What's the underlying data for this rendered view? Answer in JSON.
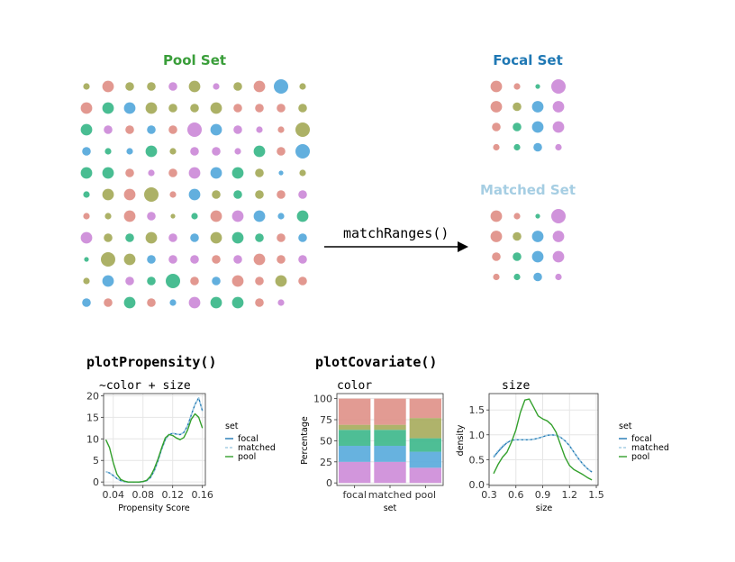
{
  "colors": {
    "red": "#E0928A",
    "olive": "#A8AD5E",
    "green": "#3FB98C",
    "blue": "#5AABDC",
    "purple": "#CE8DD9",
    "pool_title": "#3A9E3A",
    "focal_title": "#1F78B4",
    "matched_title": "#A6CEE3",
    "line_focal": "#1F78B4",
    "line_matched": "#A6CEE3",
    "line_pool": "#33A02C"
  },
  "diagram": {
    "pool_title": "Pool Set",
    "focal_title": "Focal Set",
    "matched_title": "Matched Set",
    "arrow_label": "matchRanges()",
    "pool_dots": [
      [
        "olive",
        2
      ],
      [
        "red",
        4
      ],
      [
        "olive",
        3
      ],
      [
        "olive",
        3
      ],
      [
        "purple",
        3
      ],
      [
        "olive",
        4
      ],
      [
        "purple",
        2
      ],
      [
        "olive",
        3
      ],
      [
        "red",
        4
      ],
      [
        "blue",
        5
      ],
      [
        "olive",
        2
      ],
      [
        "red",
        4
      ],
      [
        "green",
        4
      ],
      [
        "blue",
        4
      ],
      [
        "olive",
        4
      ],
      [
        "olive",
        3
      ],
      [
        "olive",
        3
      ],
      [
        "olive",
        4
      ],
      [
        "red",
        3
      ],
      [
        "red",
        3
      ],
      [
        "red",
        3
      ],
      [
        "olive",
        3
      ],
      [
        "green",
        4
      ],
      [
        "purple",
        3
      ],
      [
        "red",
        3
      ],
      [
        "blue",
        3
      ],
      [
        "red",
        3
      ],
      [
        "purple",
        5
      ],
      [
        "blue",
        4
      ],
      [
        "purple",
        3
      ],
      [
        "purple",
        2
      ],
      [
        "red",
        2
      ],
      [
        "olive",
        5
      ],
      [
        "blue",
        3
      ],
      [
        "green",
        2
      ],
      [
        "blue",
        2
      ],
      [
        "green",
        4
      ],
      [
        "olive",
        2
      ],
      [
        "purple",
        3
      ],
      [
        "purple",
        3
      ],
      [
        "purple",
        2
      ],
      [
        "green",
        4
      ],
      [
        "red",
        3
      ],
      [
        "blue",
        5
      ],
      [
        "green",
        4
      ],
      [
        "green",
        4
      ],
      [
        "red",
        3
      ],
      [
        "purple",
        2
      ],
      [
        "red",
        3
      ],
      [
        "purple",
        4
      ],
      [
        "blue",
        4
      ],
      [
        "green",
        4
      ],
      [
        "olive",
        3
      ],
      [
        "blue",
        1
      ],
      [
        "olive",
        2
      ],
      [
        "green",
        2
      ],
      [
        "olive",
        4
      ],
      [
        "red",
        4
      ],
      [
        "olive",
        5
      ],
      [
        "red",
        2
      ],
      [
        "blue",
        4
      ],
      [
        "olive",
        3
      ],
      [
        "green",
        3
      ],
      [
        "olive",
        3
      ],
      [
        "red",
        3
      ],
      [
        "purple",
        3
      ],
      [
        "red",
        2
      ],
      [
        "olive",
        2
      ],
      [
        "red",
        4
      ],
      [
        "purple",
        3
      ],
      [
        "olive",
        1
      ],
      [
        "green",
        2
      ],
      [
        "red",
        4
      ],
      [
        "purple",
        4
      ],
      [
        "blue",
        4
      ],
      [
        "blue",
        2
      ],
      [
        "green",
        4
      ],
      [
        "purple",
        4
      ],
      [
        "olive",
        3
      ],
      [
        "green",
        3
      ],
      [
        "olive",
        4
      ],
      [
        "purple",
        3
      ],
      [
        "blue",
        3
      ],
      [
        "olive",
        4
      ],
      [
        "green",
        4
      ],
      [
        "green",
        3
      ],
      [
        "red",
        3
      ],
      [
        "blue",
        3
      ],
      [
        "green",
        1
      ],
      [
        "olive",
        5
      ],
      [
        "olive",
        4
      ],
      [
        "blue",
        3
      ],
      [
        "purple",
        3
      ],
      [
        "purple",
        3
      ],
      [
        "red",
        3
      ],
      [
        "purple",
        3
      ],
      [
        "red",
        4
      ],
      [
        "red",
        3
      ],
      [
        "purple",
        3
      ],
      [
        "olive",
        2
      ],
      [
        "blue",
        4
      ],
      [
        "purple",
        3
      ],
      [
        "green",
        3
      ],
      [
        "green",
        5
      ],
      [
        "red",
        3
      ],
      [
        "blue",
        3
      ],
      [
        "red",
        4
      ],
      [
        "red",
        3
      ],
      [
        "olive",
        4
      ],
      [
        "red",
        3
      ],
      [
        "blue",
        3
      ],
      [
        "red",
        3
      ],
      [
        "green",
        4
      ],
      [
        "red",
        3
      ],
      [
        "blue",
        2
      ],
      [
        "purple",
        4
      ],
      [
        "green",
        4
      ],
      [
        "green",
        4
      ],
      [
        "red",
        3
      ],
      [
        "purple",
        2
      ]
    ],
    "focal_dots": [
      [
        "red",
        4
      ],
      [
        "red",
        2
      ],
      [
        "green",
        1
      ],
      [
        "purple",
        5
      ],
      [
        "red",
        4
      ],
      [
        "olive",
        3
      ],
      [
        "blue",
        4
      ],
      [
        "purple",
        4
      ],
      [
        "red",
        3
      ],
      [
        "green",
        3
      ],
      [
        "blue",
        4
      ],
      [
        "purple",
        4
      ],
      [
        "red",
        2
      ],
      [
        "green",
        2
      ],
      [
        "blue",
        3
      ],
      [
        "purple",
        2
      ]
    ],
    "matched_dots": [
      [
        "red",
        4
      ],
      [
        "red",
        2
      ],
      [
        "green",
        1
      ],
      [
        "purple",
        5
      ],
      [
        "red",
        4
      ],
      [
        "olive",
        3
      ],
      [
        "blue",
        4
      ],
      [
        "purple",
        4
      ],
      [
        "red",
        3
      ],
      [
        "green",
        3
      ],
      [
        "blue",
        4
      ],
      [
        "purple",
        4
      ],
      [
        "red",
        2
      ],
      [
        "green",
        2
      ],
      [
        "blue",
        3
      ],
      [
        "purple",
        2
      ]
    ]
  },
  "propensity_plot": {
    "function_label": "plotPropensity()",
    "subtitle": "~color + size",
    "xlabel": "Propensity Score",
    "legend_title": "set"
  },
  "covariate_plot": {
    "function_label": "plotCovariate()",
    "color_subtitle": "color",
    "size_subtitle": "size",
    "bar_xlabel": "set",
    "bar_ylabel": "Percentage",
    "density_xlabel": "size",
    "density_ylabel": "density",
    "legend_title": "set"
  },
  "chart_data": [
    {
      "type": "line",
      "title": "~color + size",
      "xlabel": "Propensity Score",
      "ylabel": "",
      "xlim": [
        0.027,
        0.164
      ],
      "ylim": [
        -0.8,
        20.5
      ],
      "xticks": [
        0.04,
        0.08,
        0.12,
        0.16
      ],
      "xtick_labels": [
        "0.04",
        "0.08",
        "0.12",
        "0.16"
      ],
      "yticks": [
        0,
        5,
        10,
        15,
        20
      ],
      "legend_title": "set",
      "legend": "right",
      "grid": true,
      "series": [
        {
          "name": "focal",
          "color": "#1F78B4",
          "dash": "",
          "x": [
            0.03,
            0.035,
            0.04,
            0.045,
            0.05,
            0.055,
            0.06,
            0.065,
            0.07,
            0.075,
            0.08,
            0.085,
            0.09,
            0.095,
            0.1,
            0.105,
            0.11,
            0.115,
            0.12,
            0.125,
            0.13,
            0.135,
            0.14,
            0.145,
            0.15,
            0.155,
            0.16
          ],
          "y": [
            2.4,
            2.1,
            1.5,
            0.8,
            0.3,
            0.1,
            0.0,
            0.0,
            0.0,
            0.0,
            0.1,
            0.3,
            1.0,
            2.5,
            4.8,
            7.5,
            9.8,
            11.0,
            11.3,
            11.1,
            11.0,
            11.5,
            13.0,
            15.5,
            18.0,
            19.5,
            16.5
          ]
        },
        {
          "name": "matched",
          "color": "#A6CEE3",
          "dash": "3,2",
          "x": [
            0.03,
            0.035,
            0.04,
            0.045,
            0.05,
            0.055,
            0.06,
            0.065,
            0.07,
            0.075,
            0.08,
            0.085,
            0.09,
            0.095,
            0.1,
            0.105,
            0.11,
            0.115,
            0.12,
            0.125,
            0.13,
            0.135,
            0.14,
            0.145,
            0.15,
            0.155,
            0.16
          ],
          "y": [
            2.4,
            2.1,
            1.5,
            0.8,
            0.3,
            0.1,
            0.0,
            0.0,
            0.0,
            0.0,
            0.1,
            0.3,
            1.0,
            2.5,
            4.8,
            7.5,
            9.8,
            11.0,
            11.3,
            11.1,
            11.0,
            11.5,
            13.0,
            15.5,
            18.0,
            19.5,
            16.5
          ]
        },
        {
          "name": "pool",
          "color": "#33A02C",
          "dash": "",
          "x": [
            0.03,
            0.035,
            0.04,
            0.045,
            0.05,
            0.055,
            0.06,
            0.065,
            0.07,
            0.075,
            0.08,
            0.085,
            0.09,
            0.095,
            0.1,
            0.105,
            0.11,
            0.115,
            0.12,
            0.125,
            0.13,
            0.135,
            0.14,
            0.145,
            0.15,
            0.155,
            0.16
          ],
          "y": [
            9.8,
            8.0,
            4.5,
            1.8,
            0.6,
            0.2,
            0.0,
            0.0,
            0.0,
            0.0,
            0.1,
            0.4,
            1.3,
            3.0,
            5.2,
            7.8,
            10.2,
            11.0,
            10.8,
            10.2,
            9.8,
            10.3,
            12.0,
            14.5,
            15.8,
            15.0,
            12.5
          ]
        }
      ]
    },
    {
      "type": "bar",
      "stacked": true,
      "title": "color",
      "xlabel": "set",
      "ylabel": "Percentage",
      "categories": [
        "focal",
        "matched",
        "pool"
      ],
      "ylim": [
        -3,
        106
      ],
      "yticks": [
        0,
        25,
        50,
        75,
        100
      ],
      "grid": true,
      "series": [
        {
          "name": "purple",
          "color": "#CE8DD9",
          "values": [
            25,
            25,
            18
          ]
        },
        {
          "name": "blue",
          "color": "#5AABDC",
          "values": [
            19,
            19,
            19
          ]
        },
        {
          "name": "green",
          "color": "#3FB98C",
          "values": [
            19,
            19,
            16
          ]
        },
        {
          "name": "olive",
          "color": "#A8AD5E",
          "values": [
            6,
            6,
            24
          ]
        },
        {
          "name": "red",
          "color": "#E0928A",
          "values": [
            31,
            31,
            23
          ]
        }
      ]
    },
    {
      "type": "line",
      "title": "size",
      "xlabel": "size",
      "ylabel": "density",
      "xlim": [
        0.3,
        1.52
      ],
      "ylim": [
        -0.02,
        1.83
      ],
      "xticks": [
        0.3,
        0.6,
        0.9,
        1.2,
        1.5
      ],
      "xtick_labels": [
        "0.3",
        "0.6",
        "0.9",
        "1.2",
        "1.5"
      ],
      "yticks": [
        0.0,
        0.5,
        1.0,
        1.5
      ],
      "ytick_labels": [
        "0.0",
        "0.5",
        "1.0",
        "1.5"
      ],
      "legend_title": "set",
      "legend": "right",
      "grid": true,
      "series": [
        {
          "name": "focal",
          "color": "#1F78B4",
          "dash": "",
          "x": [
            0.35,
            0.4,
            0.45,
            0.5,
            0.55,
            0.6,
            0.65,
            0.7,
            0.75,
            0.8,
            0.85,
            0.9,
            0.95,
            1.0,
            1.05,
            1.1,
            1.15,
            1.2,
            1.25,
            1.3,
            1.35,
            1.4,
            1.45
          ],
          "y": [
            0.55,
            0.66,
            0.76,
            0.84,
            0.89,
            0.9,
            0.9,
            0.9,
            0.9,
            0.91,
            0.93,
            0.96,
            0.99,
            1.0,
            0.99,
            0.95,
            0.88,
            0.78,
            0.65,
            0.52,
            0.41,
            0.32,
            0.25
          ]
        },
        {
          "name": "matched",
          "color": "#A6CEE3",
          "dash": "3,2",
          "x": [
            0.35,
            0.4,
            0.45,
            0.5,
            0.55,
            0.6,
            0.65,
            0.7,
            0.75,
            0.8,
            0.85,
            0.9,
            0.95,
            1.0,
            1.05,
            1.1,
            1.15,
            1.2,
            1.25,
            1.3,
            1.35,
            1.4,
            1.45
          ],
          "y": [
            0.57,
            0.68,
            0.78,
            0.85,
            0.89,
            0.9,
            0.9,
            0.9,
            0.9,
            0.91,
            0.93,
            0.96,
            0.99,
            1.0,
            0.99,
            0.95,
            0.88,
            0.78,
            0.65,
            0.52,
            0.41,
            0.32,
            0.26
          ]
        },
        {
          "name": "pool",
          "color": "#33A02C",
          "dash": "",
          "x": [
            0.35,
            0.4,
            0.45,
            0.5,
            0.55,
            0.6,
            0.65,
            0.7,
            0.75,
            0.8,
            0.85,
            0.9,
            0.95,
            1.0,
            1.05,
            1.1,
            1.15,
            1.2,
            1.25,
            1.3,
            1.35,
            1.4,
            1.45
          ],
          "y": [
            0.22,
            0.4,
            0.55,
            0.65,
            0.85,
            1.1,
            1.45,
            1.7,
            1.72,
            1.55,
            1.38,
            1.32,
            1.28,
            1.2,
            1.05,
            0.8,
            0.55,
            0.38,
            0.3,
            0.25,
            0.2,
            0.14,
            0.09
          ]
        }
      ]
    }
  ]
}
